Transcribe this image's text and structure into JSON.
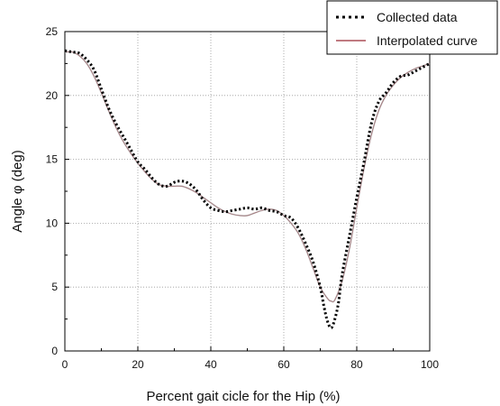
{
  "chart_data": {
    "type": "line",
    "xlabel": "Percent gait cicle for the Hip (%)",
    "ylabel": "Angle φ (deg)",
    "xlim": [
      0,
      100
    ],
    "ylim": [
      0,
      25
    ],
    "x_ticks": [
      0,
      20,
      40,
      60,
      80,
      100
    ],
    "y_ticks": [
      0,
      5,
      10,
      15,
      20,
      25
    ],
    "x_tick_labels": [
      "0",
      "20",
      "40",
      "60",
      "80",
      "100"
    ],
    "y_tick_labels": [
      "0",
      "5",
      "10",
      "15",
      "20",
      "25"
    ],
    "grid": true,
    "legend_position": "top-right",
    "series": [
      {
        "name": "Collected data",
        "style": "dotted",
        "color": "#000000",
        "x": [
          0,
          2,
          4,
          6,
          8,
          10,
          12,
          14,
          16,
          18,
          20,
          22,
          24,
          26,
          28,
          30,
          32,
          34,
          36,
          38,
          40,
          42,
          44,
          46,
          48,
          50,
          52,
          54,
          56,
          58,
          60,
          62,
          64,
          66,
          68,
          70,
          71,
          72,
          73,
          74,
          75,
          76,
          78,
          80,
          82,
          84,
          86,
          88,
          90,
          92,
          94,
          96,
          98,
          100
        ],
        "y": [
          23.5,
          23.4,
          23.3,
          22.8,
          22.0,
          20.5,
          19.0,
          17.8,
          16.8,
          15.8,
          14.8,
          14.2,
          13.5,
          13.0,
          12.9,
          13.2,
          13.3,
          13.1,
          12.6,
          11.8,
          11.2,
          11.0,
          10.9,
          11.0,
          11.1,
          11.2,
          11.1,
          11.2,
          11.0,
          10.9,
          10.6,
          10.4,
          9.6,
          8.4,
          7.0,
          5.0,
          3.5,
          2.3,
          1.8,
          2.5,
          3.8,
          6.0,
          9.0,
          12.0,
          14.8,
          17.8,
          19.5,
          20.2,
          21.0,
          21.5,
          21.6,
          21.9,
          22.2,
          22.5
        ]
      },
      {
        "name": "Interpolated curve",
        "style": "solid",
        "color": "#9b2a35",
        "x": [
          0,
          2,
          4,
          6,
          8,
          10,
          12,
          14,
          16,
          18,
          20,
          22,
          24,
          26,
          28,
          30,
          32,
          34,
          36,
          38,
          40,
          42,
          44,
          46,
          48,
          50,
          52,
          54,
          56,
          58,
          60,
          62,
          64,
          66,
          68,
          70,
          72,
          73,
          74,
          76,
          78,
          80,
          82,
          84,
          86,
          88,
          90,
          92,
          94,
          96,
          98,
          100
        ],
        "y": [
          23.4,
          23.4,
          23.1,
          22.5,
          21.5,
          20.2,
          18.8,
          17.5,
          16.4,
          15.5,
          14.7,
          14.0,
          13.4,
          13.0,
          12.9,
          12.9,
          12.9,
          12.7,
          12.4,
          12.0,
          11.6,
          11.2,
          10.9,
          10.7,
          10.6,
          10.6,
          10.8,
          11.0,
          11.1,
          11.0,
          10.6,
          10.0,
          9.2,
          8.0,
          6.5,
          5.0,
          4.1,
          3.9,
          4.0,
          5.5,
          8.0,
          11.2,
          14.3,
          16.9,
          18.8,
          20.0,
          20.8,
          21.4,
          21.8,
          22.1,
          22.3,
          22.5
        ]
      }
    ]
  }
}
